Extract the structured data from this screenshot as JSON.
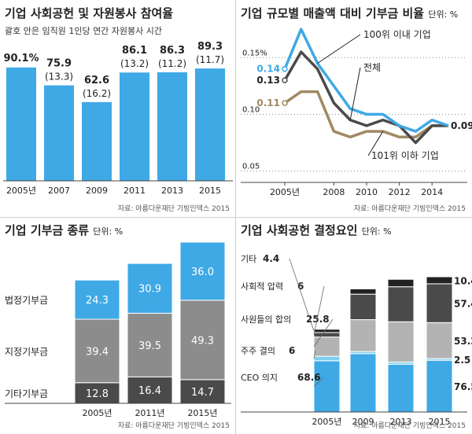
{
  "panels": {
    "participation": {
      "title": "기업 사회공헌 및 자원봉사 참여율",
      "subtitle": "괄호 안은 임직원 1인당 연간 자원봉사 시간",
      "source": "자료: 아름다운재단 기빙인덱스 2015"
    },
    "ratio": {
      "title": "기업 규모별 매출액 대비 기부금 비율",
      "unit": "단위: %",
      "source": "자료: 아름다운재단 기빙인덱스 2015"
    },
    "donation_types": {
      "title": "기업 기부금 종류",
      "unit": "단위: %",
      "source": "자료: 아름다운재단 기빙인덱스 2015"
    },
    "decision_factors": {
      "title": "기업 사회공헌 결정요인",
      "unit": "단위: %",
      "source": "자료: 아름다운재단 기빙인덱스 2015"
    }
  },
  "colors": {
    "blue": "#3fa9e6",
    "lightgray": "#b3b3b3",
    "midgray": "#8c8c8c",
    "darkgray": "#4a4a4a",
    "nearblack": "#222222",
    "olive": "#a08a63",
    "palegray": "#d6d6d6"
  },
  "chart_data": [
    {
      "id": "participation",
      "type": "bar",
      "title": "기업 사회공헌 및 자원봉사 참여율",
      "categories": [
        "2005년",
        "2007",
        "2009",
        "2011",
        "2013",
        "2015"
      ],
      "values": [
        90.1,
        75.9,
        62.6,
        86.1,
        86.3,
        89.3
      ],
      "value_labels": [
        "90.1%",
        "75.9",
        "62.6",
        "86.1",
        "86.3",
        "89.3"
      ],
      "hours_labels": [
        "",
        "(13.3)",
        "(16.2)",
        "(13.2)",
        "(11.2)",
        "(11.7)"
      ],
      "ylim": [
        0,
        100
      ]
    },
    {
      "id": "ratio",
      "type": "line",
      "title": "기업 규모별 매출액 대비 기부금 비율",
      "x": [
        2005,
        2006,
        2007,
        2008,
        2009,
        2010,
        2011,
        2012,
        2013,
        2014,
        2015
      ],
      "x_tick_values": [
        2005,
        2008,
        2010,
        2012,
        2014
      ],
      "x_tick_labels": [
        "2005년",
        "2008",
        "2010",
        "2012",
        "2014"
      ],
      "y_ticks": [
        {
          "value": 0.15,
          "label": "0.15%"
        },
        {
          "value": 0.1,
          "label": "0.10"
        },
        {
          "value": 0.05,
          "label": "0.05"
        }
      ],
      "ylim": [
        0.04,
        0.18
      ],
      "series": [
        {
          "name": "100위 이내 기업",
          "values": [
            0.14,
            0.175,
            0.145,
            0.125,
            0.105,
            0.1,
            0.1,
            0.09,
            0.085,
            0.095,
            0.09
          ],
          "start_label": "0.14"
        },
        {
          "name": "전체",
          "values": [
            0.13,
            0.155,
            0.14,
            0.11,
            0.095,
            0.09,
            0.095,
            0.09,
            0.075,
            0.09,
            0.09
          ],
          "start_label": "0.13"
        },
        {
          "name": "101위 이하 기업",
          "values": [
            0.11,
            0.12,
            0.12,
            0.085,
            0.08,
            0.085,
            0.085,
            0.08,
            0.08,
            0.09,
            0.09
          ],
          "start_label": "0.11"
        }
      ],
      "end_label": "0.09"
    },
    {
      "id": "donation_types",
      "type": "bar",
      "stacked": true,
      "title": "기업 기부금 종류",
      "categories": [
        "2005년",
        "2011년",
        "2015년"
      ],
      "series": [
        {
          "name": "기타기부금",
          "values": [
            12.8,
            16.4,
            14.7
          ]
        },
        {
          "name": "지정기부금",
          "values": [
            39.4,
            39.5,
            49.3
          ]
        },
        {
          "name": "법정기부금",
          "values": [
            24.3,
            30.9,
            36.0
          ]
        }
      ],
      "value_labels": [
        [
          "12.8",
          "16.4",
          "14.7"
        ],
        [
          "39.4",
          "39.5",
          "49.3"
        ],
        [
          "24.3",
          "30.9",
          "36.0"
        ]
      ],
      "ylim": [
        0,
        100
      ]
    },
    {
      "id": "decision_factors",
      "type": "bar",
      "stacked": true,
      "title": "기업 사회공헌 결정요인",
      "categories": [
        "2005년",
        "2009",
        "2013",
        "2015"
      ],
      "series": [
        {
          "name": "CEO 의지",
          "values": [
            68.6,
            55.0,
            45.0,
            76.5
          ]
        },
        {
          "name": "주주 결의",
          "values": [
            6.0,
            2.0,
            2.0,
            2.5
          ]
        },
        {
          "name": "사원들의 합의",
          "values": [
            25.8,
            30.0,
            38.0,
            53.2
          ]
        },
        {
          "name": "사회적 압력",
          "values": [
            6.0,
            24.0,
            33.0,
            57.4
          ]
        },
        {
          "name": "기타",
          "values": [
            4.4,
            5.0,
            7.0,
            10.4
          ]
        }
      ],
      "legend_labels": [
        "CEO 의지",
        "주주 결의",
        "사원들의 합의",
        "사회적 압력",
        "기타"
      ],
      "legend_values": [
        "68.6",
        "6",
        "25.8",
        "6",
        "4.4"
      ],
      "value_labels": [
        "76.5",
        "2.5",
        "53.2",
        "57.4",
        "10.4"
      ]
    }
  ]
}
